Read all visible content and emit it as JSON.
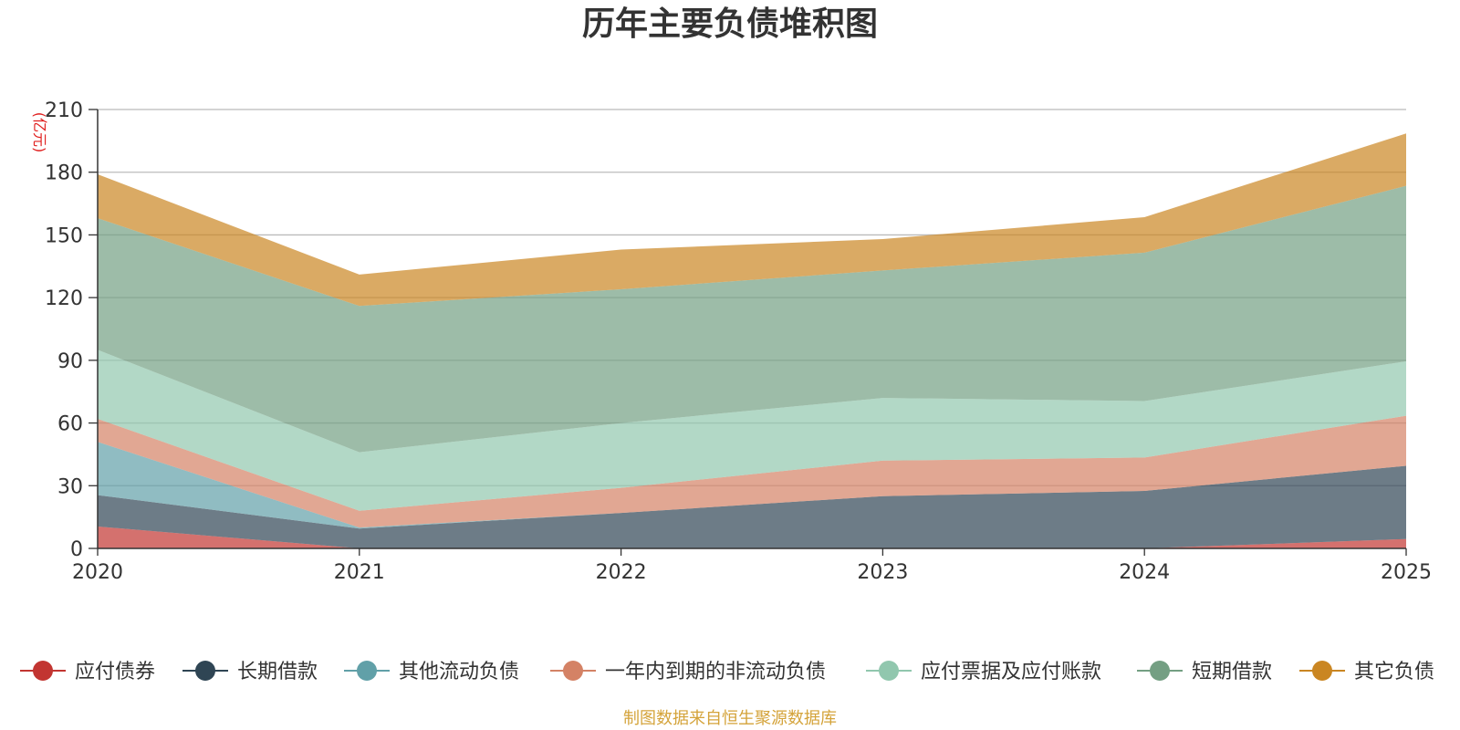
{
  "chart_data": {
    "type": "area",
    "stacked": true,
    "title": "历年主要负债堆积图",
    "ylabel": "(亿元)",
    "xlabel": "",
    "categories": [
      "2020",
      "2021",
      "2022",
      "2023",
      "2024",
      "2025"
    ],
    "ylim": [
      0,
      210
    ],
    "yticks": [
      0,
      30,
      60,
      90,
      120,
      150,
      180,
      210
    ],
    "grid": true,
    "legend_position": "bottom",
    "series": [
      {
        "name": "应付债券",
        "color": "#c23531",
        "values": [
          10.5,
          0,
          0,
          0,
          0,
          4.5
        ]
      },
      {
        "name": "长期借款",
        "color": "#2f4554",
        "values": [
          15,
          9.5,
          17,
          25,
          27.5,
          35
        ]
      },
      {
        "name": "其他流动负债",
        "color": "#61a0a8",
        "values": [
          25.5,
          0.5,
          0,
          0,
          0,
          0
        ]
      },
      {
        "name": "一年内到期的非流动负债",
        "color": "#d48265",
        "values": [
          11,
          8,
          12,
          17,
          16,
          24
        ]
      },
      {
        "name": "应付票据及应付账款",
        "color": "#91c7ae",
        "values": [
          33,
          28,
          31,
          30,
          27,
          26
        ]
      },
      {
        "name": "短期借款",
        "color": "#749f83",
        "values": [
          63,
          70,
          64,
          61,
          71,
          84
        ]
      },
      {
        "name": "其它负债",
        "color": "#ca8622",
        "values": [
          21,
          15,
          19,
          15,
          17,
          25
        ]
      }
    ],
    "source": "制图数据来自恒生聚源数据库"
  }
}
